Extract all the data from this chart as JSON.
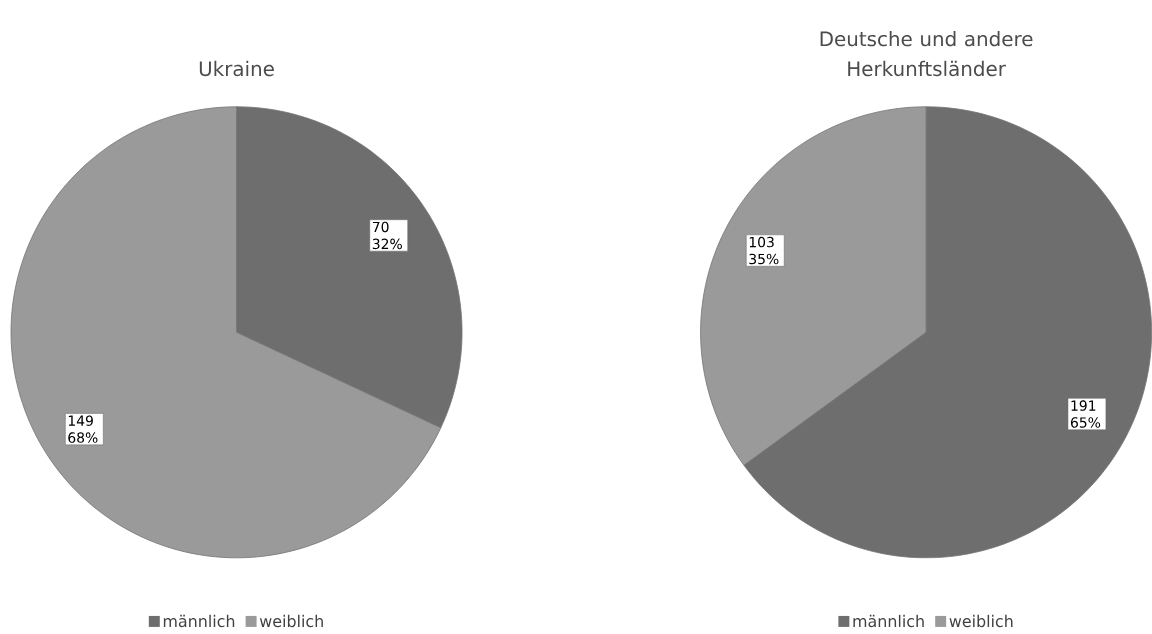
{
  "chart_data": [
    {
      "type": "pie",
      "title": "Ukraine",
      "categories": [
        "männlich",
        "weiblich"
      ],
      "values": [
        70,
        149
      ],
      "colors": [
        "#6e6e6e",
        "#9a9a9a"
      ],
      "value_labels": [
        "70 32%",
        "149 68%"
      ],
      "legend": "bottom"
    },
    {
      "type": "pie",
      "title": "Deutsche und andere Herkunftsländer",
      "categories": [
        "männlich",
        "weiblich"
      ],
      "values": [
        191,
        103
      ],
      "colors": [
        "#6e6e6e",
        "#9a9a9a"
      ],
      "value_labels": [
        "191 65%",
        "103 35%"
      ],
      "legend": "bottom"
    }
  ]
}
